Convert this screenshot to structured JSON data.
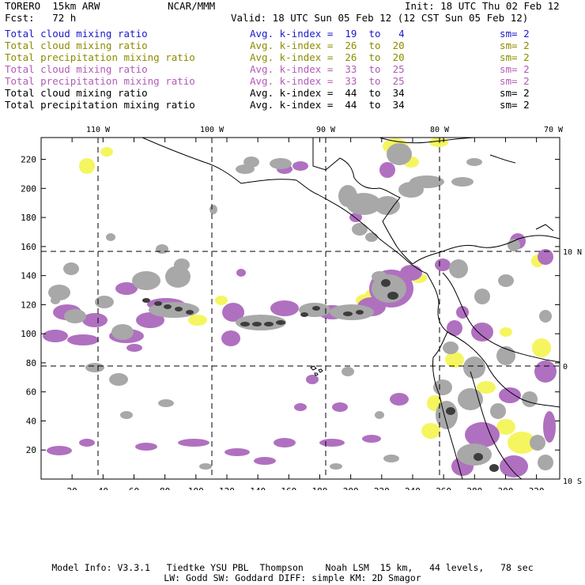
{
  "header": {
    "model": "TORERO  15km ARW",
    "center": "NCAR/MMM",
    "init": "Init: 18 UTC Thu 02 Feb 12",
    "fcst": "Fcst:   72 h",
    "valid": "Valid: 18 UTC Sun 05 Feb 12 (12 CST Sun 05 Feb 12)"
  },
  "legend": [
    {
      "field": "Total cloud mixing ratio",
      "kindex": "Avg. k-index =  19  to   4",
      "sm": "sm= 2",
      "color": "#1a1acc"
    },
    {
      "field": "Total cloud mixing ratio",
      "kindex": "Avg. k-index =  26  to  20",
      "sm": "sm= 2",
      "color": "#8c8c00"
    },
    {
      "field": "Total precipitation mixing ratio",
      "kindex": "Avg. k-index =  26  to  20",
      "sm": "sm= 2",
      "color": "#8c8c00"
    },
    {
      "field": "Total cloud mixing ratio",
      "kindex": "Avg. k-index =  33  to  25",
      "sm": "sm= 2",
      "color": "#b35ab8"
    },
    {
      "field": "Total precipitation mixing ratio",
      "kindex": "Avg. k-index =  33  to  25",
      "sm": "sm= 2",
      "color": "#b35ab8"
    },
    {
      "field": "Total cloud mixing ratio",
      "kindex": "Avg. k-index =  44  to  34",
      "sm": "sm= 2",
      "color": "#000000"
    },
    {
      "field": "Total precipitation mixing ratio",
      "kindex": "Avg. k-index =  44  to  34",
      "sm": "sm= 2",
      "color": "#000000"
    }
  ],
  "map": {
    "lon_labels": [
      "110 W",
      "100 W",
      "90 W",
      "80 W",
      "70 W"
    ],
    "lat_labels": [
      "10 N",
      "0",
      "10 S"
    ],
    "x_ticks": [
      "20",
      "40",
      "60",
      "80",
      "100",
      "120",
      "140",
      "160",
      "180",
      "200",
      "220",
      "240",
      "260",
      "280",
      "300",
      "320"
    ],
    "y_ticks": [
      "20",
      "40",
      "60",
      "80",
      "100",
      "120",
      "140",
      "160",
      "180",
      "200",
      "220"
    ],
    "colors": {
      "cloud_low": "#a8a8a8",
      "cloud_high": "#3c3c3c",
      "precip_mid": "#b070c0",
      "precip_low": "#f5f560",
      "coast": "#000000",
      "grid": "#000000"
    }
  },
  "footer": {
    "line1": "Model Info: V3.3.1   Tiedtke YSU PBL  Thompson    Noah LSM  15 km,   44 levels,   78 sec",
    "line2": "LW: Godd SW: Goddard DIFF: simple KM: 2D Smagor"
  }
}
